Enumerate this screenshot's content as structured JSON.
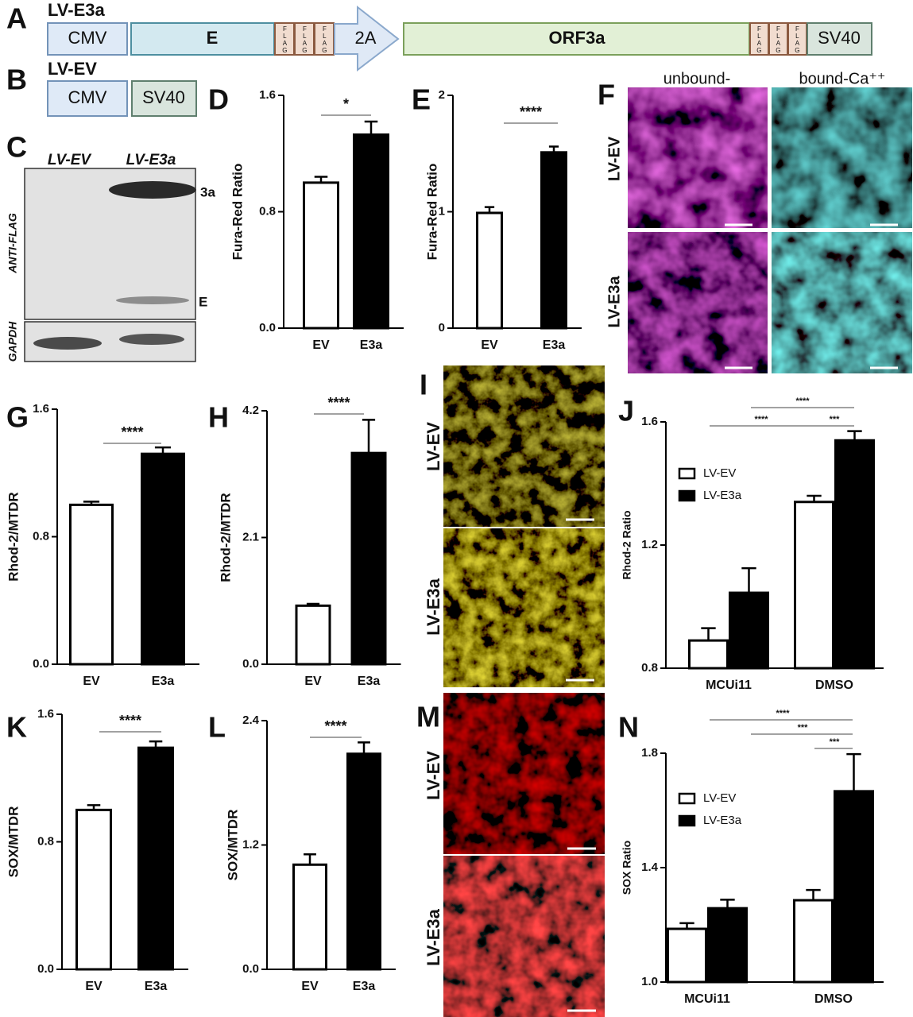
{
  "panel_letters": [
    "A",
    "B",
    "C",
    "D",
    "E",
    "F",
    "G",
    "H",
    "I",
    "J",
    "K",
    "L",
    "M",
    "N"
  ],
  "construct_a": {
    "name": "LV-E3a",
    "cmv": "CMV",
    "e": "E",
    "flag": "FLAG",
    "linker": "2A",
    "orf": "ORF3a",
    "sv40": "SV40"
  },
  "construct_b": {
    "name": "LV-EV",
    "cmv": "CMV",
    "sv40": "SV40"
  },
  "blot": {
    "lanes": [
      "LV-EV",
      "LV-E3a"
    ],
    "antibodies": [
      "ANTI-FLAG",
      "GAPDH"
    ],
    "bands": [
      "3a",
      "E"
    ]
  },
  "imaging_f": {
    "columns": [
      "unbound-",
      "bound-Ca⁺⁺"
    ],
    "rows": [
      "LV-EV",
      "LV-E3a"
    ]
  },
  "imaging_i": {
    "rows": [
      "LV-EV",
      "LV-E3a"
    ]
  },
  "imaging_m": {
    "rows": [
      "LV-EV",
      "LV-E3a"
    ]
  },
  "chart_data": [
    {
      "type": "bar",
      "ylabel": "Fura-Red Ratio",
      "categories": [
        "EV",
        "E3a"
      ],
      "values": [
        1.0,
        1.33
      ],
      "errors": [
        0.04,
        0.09
      ],
      "colors": [
        "#ffffff",
        "#000000"
      ],
      "ylim": [
        0,
        1.6
      ],
      "yticks": [
        {
          "value": 0,
          "label": "0.0"
        },
        0.8,
        1.6
      ],
      "significance": [
        "*"
      ]
    },
    {
      "type": "bar",
      "ylabel": "Fura-Red Ratio",
      "categories": [
        "EV",
        "E3a"
      ],
      "values": [
        0.99,
        1.51
      ],
      "errors": [
        0.05,
        0.05
      ],
      "colors": [
        "#ffffff",
        "#000000"
      ],
      "ylim": [
        0,
        2
      ],
      "yticks": [
        0,
        1,
        2
      ],
      "significance": [
        "****"
      ]
    },
    {
      "type": "bar",
      "ylabel": "Rhod-2/MTDR",
      "categories": [
        "EV",
        "E3a"
      ],
      "values": [
        1.0,
        1.32
      ],
      "errors": [
        0.02,
        0.04
      ],
      "colors": [
        "#ffffff",
        "#000000"
      ],
      "ylim": [
        0,
        1.6
      ],
      "yticks": [
        {
          "value": 0,
          "label": "0.0"
        },
        0.8,
        1.6
      ],
      "significance": [
        "****"
      ]
    },
    {
      "type": "bar",
      "ylabel": "Rhod-2/MTDR",
      "categories": [
        "EV",
        "E3a"
      ],
      "values": [
        0.97,
        3.5
      ],
      "errors": [
        0.03,
        0.55
      ],
      "colors": [
        "#ffffff",
        "#000000"
      ],
      "ylim": [
        0,
        4.2
      ],
      "yticks": [
        {
          "value": 0,
          "label": "0.0"
        },
        2.1,
        4.2
      ],
      "significance": [
        "****"
      ]
    },
    {
      "type": "grouped_bar",
      "ylabel": "Rhod-2 Ratio",
      "categories": [
        "MCUi11",
        "DMSO"
      ],
      "series": [
        {
          "name": "LV-EV",
          "color": "#ffffff",
          "values": [
            0.89,
            1.34
          ],
          "errors": [
            0.04,
            0.02
          ]
        },
        {
          "name": "LV-E3a",
          "color": "#000000",
          "values": [
            1.045,
            1.54
          ],
          "errors": [
            0.08,
            0.03
          ]
        }
      ],
      "ylim": [
        0.8,
        1.6
      ],
      "yticks": [
        0.8,
        1.2,
        1.6
      ],
      "legend": "upper left",
      "significance": [
        "****",
        "****",
        "***"
      ]
    },
    {
      "type": "bar",
      "ylabel": "SOX/MTDR",
      "categories": [
        "EV",
        "E3a"
      ],
      "values": [
        1.0,
        1.39
      ],
      "errors": [
        0.03,
        0.04
      ],
      "colors": [
        "#ffffff",
        "#000000"
      ],
      "ylim": [
        0,
        1.6
      ],
      "yticks": [
        {
          "value": 0,
          "label": "0.0"
        },
        0.8,
        1.6
      ],
      "significance": [
        "****"
      ]
    },
    {
      "type": "bar",
      "ylabel": "SOX/MTDR",
      "categories": [
        "EV",
        "E3a"
      ],
      "values": [
        1.01,
        2.08
      ],
      "errors": [
        0.1,
        0.11
      ],
      "colors": [
        "#ffffff",
        "#000000"
      ],
      "ylim": [
        0,
        2.4
      ],
      "yticks": [
        {
          "value": 0,
          "label": "0.0"
        },
        1.2,
        2.4
      ],
      "significance": [
        "****"
      ]
    },
    {
      "type": "grouped_bar",
      "ylabel": "SOX Ratio",
      "categories": [
        "MCUi11",
        "DMSO"
      ],
      "series": [
        {
          "name": "LV-EV",
          "color": "#ffffff",
          "values": [
            1.186,
            1.286
          ],
          "errors": [
            0.02,
            0.036
          ]
        },
        {
          "name": "LV-E3a",
          "color": "#000000",
          "values": [
            1.258,
            1.667
          ],
          "errors": [
            0.03,
            0.13
          ]
        }
      ],
      "ylim": [
        1.0,
        1.8
      ],
      "yticks": [
        {
          "value": 1,
          "label": "1.0"
        },
        1.4,
        1.8
      ],
      "legend": "upper left",
      "significance": [
        "****",
        "***",
        "***"
      ]
    }
  ]
}
